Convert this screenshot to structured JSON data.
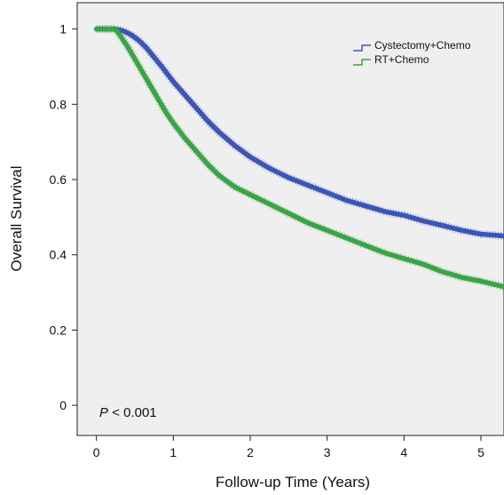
{
  "chart_data": {
    "type": "line",
    "title": "",
    "xlabel": "Follow-up Time (Years)",
    "ylabel": "Overall Survival",
    "xlim": [
      -0.25,
      5.3
    ],
    "ylim": [
      -0.08,
      1.07
    ],
    "x_ticks": [
      "0",
      "1",
      "2",
      "3",
      "4",
      "5"
    ],
    "y_ticks": [
      "0",
      "0.2",
      "0.4",
      "0.6",
      "0.8",
      "1"
    ],
    "grid": false,
    "legend_position": "top-right",
    "annotation": {
      "p_symbol": "P",
      "p_value": "< 0.001"
    },
    "series": [
      {
        "name": "Cystectomy+Chemo",
        "color": "#3d56b5",
        "x": [
          0,
          0.25,
          0.35,
          0.45,
          0.55,
          0.65,
          0.75,
          0.85,
          1.0,
          1.15,
          1.3,
          1.45,
          1.6,
          1.8,
          2.0,
          2.25,
          2.5,
          2.75,
          3.0,
          3.25,
          3.5,
          3.75,
          4.0,
          4.25,
          4.5,
          4.75,
          5.0,
          5.3
        ],
        "y": [
          1.0,
          1.0,
          0.995,
          0.985,
          0.97,
          0.95,
          0.925,
          0.9,
          0.86,
          0.825,
          0.79,
          0.755,
          0.725,
          0.69,
          0.66,
          0.63,
          0.605,
          0.585,
          0.565,
          0.545,
          0.53,
          0.515,
          0.505,
          0.49,
          0.478,
          0.465,
          0.455,
          0.45
        ]
      },
      {
        "name": "RT+Chemo",
        "color": "#3aa447",
        "x": [
          0,
          0.25,
          0.3,
          0.4,
          0.5,
          0.6,
          0.7,
          0.8,
          0.9,
          1.0,
          1.15,
          1.3,
          1.45,
          1.6,
          1.8,
          2.0,
          2.25,
          2.5,
          2.75,
          3.0,
          3.25,
          3.5,
          3.75,
          4.0,
          4.25,
          4.5,
          4.75,
          5.0,
          5.3
        ],
        "y": [
          1.0,
          1.0,
          0.985,
          0.955,
          0.92,
          0.885,
          0.85,
          0.815,
          0.78,
          0.75,
          0.71,
          0.675,
          0.64,
          0.61,
          0.58,
          0.56,
          0.535,
          0.51,
          0.485,
          0.465,
          0.445,
          0.425,
          0.405,
          0.39,
          0.375,
          0.355,
          0.34,
          0.33,
          0.315
        ]
      }
    ]
  }
}
